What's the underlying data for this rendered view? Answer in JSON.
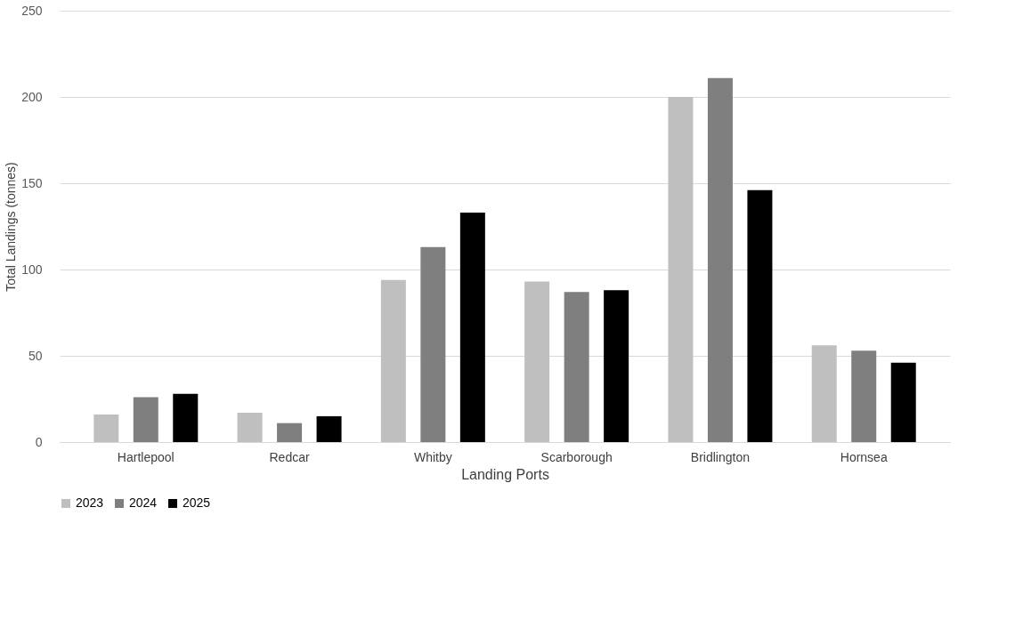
{
  "chart_data": {
    "type": "bar",
    "xlabel": "Landing Ports",
    "ylabel": "Total Landings (tonnes)",
    "categories": [
      "Hartlepool",
      "Redcar",
      "Whitby",
      "Scarborough",
      "Bridlington",
      "Hornsea"
    ],
    "series": [
      {
        "name": "2023",
        "color": "#bfbfbf",
        "values": [
          16,
          17,
          94,
          93,
          200,
          56
        ]
      },
      {
        "name": "2024",
        "color": "#7f7f7f",
        "values": [
          26,
          11,
          113,
          87,
          211,
          53
        ]
      },
      {
        "name": "2025",
        "color": "#000000",
        "values": [
          28,
          15,
          133,
          88,
          146,
          46
        ]
      }
    ],
    "ylim": [
      0,
      250
    ],
    "yticks": [
      0,
      50,
      100,
      150,
      200,
      250
    ],
    "grid": "y",
    "legend": "bottom"
  }
}
